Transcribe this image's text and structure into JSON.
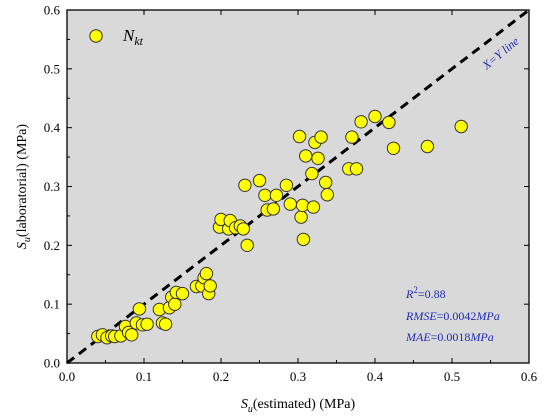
{
  "chart_data": {
    "type": "scatter",
    "xlabel": {
      "main": "S",
      "sub": "u",
      "rest": "(estimated) (MPa)"
    },
    "ylabel": {
      "main": "S",
      "sub": "u",
      "rest": "(laboratorial) (MPa)"
    },
    "xlim": [
      0.0,
      0.6
    ],
    "ylim": [
      0.0,
      0.6
    ],
    "xticks": [
      "0.0",
      "0.1",
      "0.2",
      "0.3",
      "0.4",
      "0.5",
      "0.6"
    ],
    "yticks": [
      "0.0",
      "0.1",
      "0.2",
      "0.3",
      "0.4",
      "0.5",
      "0.6"
    ],
    "grid": false,
    "background": "#d9d9d9",
    "marker_color": "#ffff00",
    "marker_edge": "#333333",
    "line_color": "#000000",
    "legend_placement": "top-left",
    "legend": {
      "main": "N",
      "sub": "kt"
    },
    "reference_line": {
      "label": "X=Y line",
      "x": [
        0.0,
        0.6
      ],
      "y": [
        0.0,
        0.6
      ]
    },
    "annotations": {
      "r2": {
        "label": "R",
        "sup": "2",
        "value": "=0.88"
      },
      "rmse": {
        "label": "RMSE",
        "value": "=0.0042",
        "unit": "MPa"
      },
      "mae": {
        "label": "MAE",
        "value": "=0.0018",
        "unit": "MPa"
      }
    },
    "series": [
      {
        "points": [
          [
            0.04,
            0.045
          ],
          [
            0.046,
            0.048
          ],
          [
            0.052,
            0.043
          ],
          [
            0.058,
            0.046
          ],
          [
            0.062,
            0.045
          ],
          [
            0.07,
            0.046
          ],
          [
            0.076,
            0.062
          ],
          [
            0.08,
            0.052
          ],
          [
            0.084,
            0.048
          ],
          [
            0.09,
            0.068
          ],
          [
            0.094,
            0.092
          ],
          [
            0.098,
            0.065
          ],
          [
            0.104,
            0.066
          ],
          [
            0.12,
            0.091
          ],
          [
            0.124,
            0.068
          ],
          [
            0.128,
            0.066
          ],
          [
            0.133,
            0.094
          ],
          [
            0.136,
            0.112
          ],
          [
            0.14,
            0.1
          ],
          [
            0.142,
            0.12
          ],
          [
            0.15,
            0.118
          ],
          [
            0.168,
            0.13
          ],
          [
            0.175,
            0.131
          ],
          [
            0.178,
            0.145
          ],
          [
            0.181,
            0.152
          ],
          [
            0.184,
            0.118
          ],
          [
            0.186,
            0.131
          ],
          [
            0.198,
            0.231
          ],
          [
            0.2,
            0.244
          ],
          [
            0.21,
            0.228
          ],
          [
            0.212,
            0.242
          ],
          [
            0.219,
            0.23
          ],
          [
            0.225,
            0.233
          ],
          [
            0.229,
            0.228
          ],
          [
            0.231,
            0.302
          ],
          [
            0.234,
            0.2
          ],
          [
            0.25,
            0.31
          ],
          [
            0.257,
            0.285
          ],
          [
            0.26,
            0.26
          ],
          [
            0.268,
            0.262
          ],
          [
            0.272,
            0.285
          ],
          [
            0.285,
            0.302
          ],
          [
            0.29,
            0.27
          ],
          [
            0.302,
            0.385
          ],
          [
            0.304,
            0.248
          ],
          [
            0.306,
            0.268
          ],
          [
            0.307,
            0.21
          ],
          [
            0.31,
            0.352
          ],
          [
            0.318,
            0.322
          ],
          [
            0.32,
            0.265
          ],
          [
            0.322,
            0.375
          ],
          [
            0.326,
            0.348
          ],
          [
            0.33,
            0.384
          ],
          [
            0.336,
            0.307
          ],
          [
            0.338,
            0.286
          ],
          [
            0.366,
            0.33
          ],
          [
            0.37,
            0.384
          ],
          [
            0.376,
            0.33
          ],
          [
            0.382,
            0.41
          ],
          [
            0.4,
            0.419
          ],
          [
            0.418,
            0.409
          ],
          [
            0.424,
            0.365
          ],
          [
            0.468,
            0.368
          ],
          [
            0.512,
            0.402
          ]
        ]
      }
    ]
  }
}
